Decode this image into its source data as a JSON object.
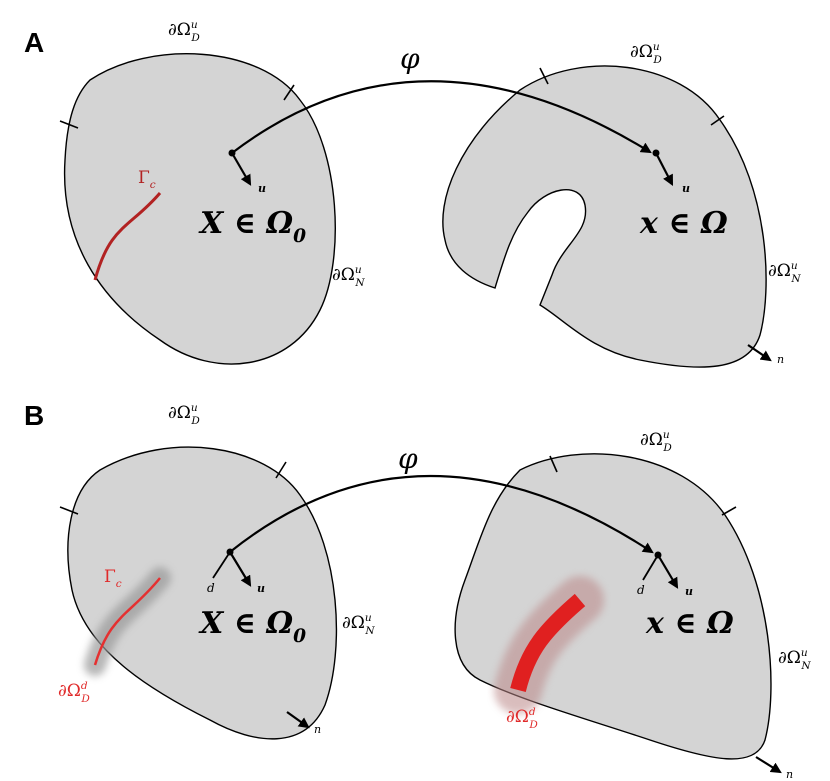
{
  "panels": [
    {
      "label": "A",
      "map": "φ",
      "reference": {
        "dirichlet": {
          "base": "∂Ω",
          "sub": "D",
          "sup": "u"
        },
        "neumann": {
          "base": "∂Ω",
          "sub": "N",
          "sup": "u"
        },
        "crack": {
          "base": "Γ",
          "sub": "c"
        },
        "point": {
          "base": "X ∈ Ω",
          "sub": "0"
        },
        "displacement": "u"
      },
      "current": {
        "dirichlet": {
          "base": "∂Ω",
          "sub": "D",
          "sup": "u"
        },
        "neumann": {
          "base": "∂Ω",
          "sub": "N",
          "sup": "u"
        },
        "point": {
          "base": "x ∈ Ω"
        },
        "displacement": "u",
        "normal": "n"
      }
    },
    {
      "label": "B",
      "map": "φ",
      "reference": {
        "dirichlet": {
          "base": "∂Ω",
          "sub": "D",
          "sup": "u"
        },
        "neumann": {
          "base": "∂Ω",
          "sub": "N",
          "sup": "u"
        },
        "crack": {
          "base": "Γ",
          "sub": "c"
        },
        "point": {
          "base": "X ∈ Ω",
          "sub": "0"
        },
        "displacement": "u",
        "director": "d",
        "damage_boundary": {
          "base": "∂Ω",
          "sub": "D",
          "sup": "d"
        },
        "normal": "n"
      },
      "current": {
        "dirichlet": {
          "base": "∂Ω",
          "sub": "D",
          "sup": "u"
        },
        "neumann": {
          "base": "∂Ω",
          "sub": "N",
          "sup": "u"
        },
        "point": {
          "base": "x ∈ Ω"
        },
        "displacement": "u",
        "director": "d",
        "damage_boundary": {
          "base": "∂Ω",
          "sub": "D",
          "sup": "d"
        },
        "normal": "n"
      }
    }
  ]
}
